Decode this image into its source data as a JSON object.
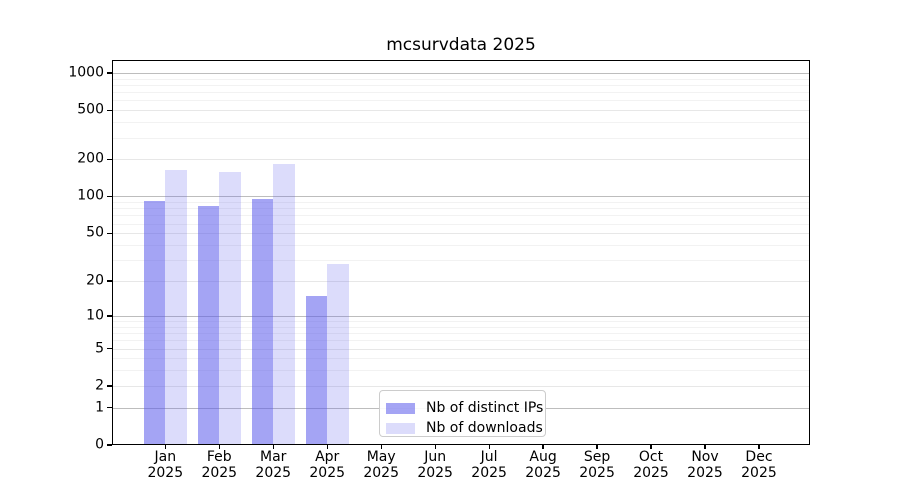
{
  "title": "mcsurvdata 2025",
  "chart_data": {
    "type": "bar",
    "title": "mcsurvdata 2025",
    "categories": [
      "Jan 2025",
      "Feb 2025",
      "Mar 2025",
      "Apr 2025",
      "May 2025",
      "Jun 2025",
      "Jul 2025",
      "Aug 2025",
      "Sep 2025",
      "Oct 2025",
      "Nov 2025",
      "Dec 2025"
    ],
    "series": [
      {
        "name": "Nb of distinct IPs",
        "color": "rgba(90,90,235,0.55)",
        "values": [
          92,
          84,
          96,
          15,
          null,
          null,
          null,
          null,
          null,
          null,
          null,
          null
        ]
      },
      {
        "name": "Nb of downloads",
        "color": "rgba(90,90,235,0.21)",
        "values": [
          165,
          159,
          184,
          28,
          null,
          null,
          null,
          null,
          null,
          null,
          null,
          null
        ]
      }
    ],
    "yscale": "log1p",
    "yticks": [
      0,
      1,
      2,
      5,
      10,
      20,
      50,
      100,
      200,
      500,
      1000
    ],
    "decade_ticks": [
      1,
      10,
      100,
      1000
    ],
    "minor_gridlines": [
      3,
      4,
      6,
      7,
      8,
      9,
      30,
      40,
      60,
      70,
      80,
      90,
      300,
      400,
      600,
      700,
      800,
      900
    ],
    "ylim": [
      0,
      1270
    ],
    "grid": true,
    "legend_position": "lower center",
    "xlabel": "",
    "ylabel": ""
  },
  "colors": {
    "grid_decade": "#bdbdbd",
    "grid_labeled": "#e7e7e7",
    "grid_minor": "#f2f2f2",
    "spine": "#000000",
    "background": "#ffffff"
  }
}
